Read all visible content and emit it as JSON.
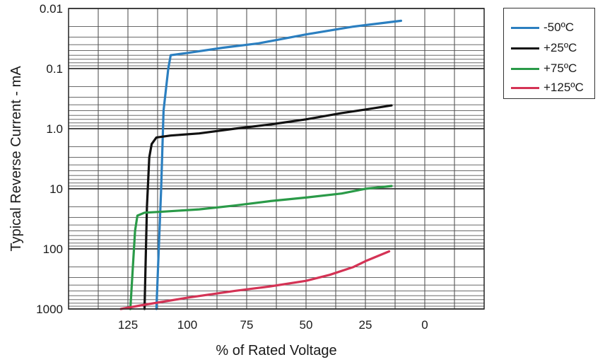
{
  "chart_data": {
    "type": "line",
    "xlabel": "% of Rated Voltage",
    "ylabel": "Typical Reverse Current - mA",
    "x_ticks": [
      "125",
      "100",
      "75",
      "50",
      "25",
      "0"
    ],
    "x_tick_values": [
      125,
      100,
      75,
      50,
      25,
      0
    ],
    "xlim": [
      150,
      -25
    ],
    "y_ticks": [
      "0.01",
      "0.1",
      "1.0",
      "10",
      "100",
      "1000"
    ],
    "y_tick_values": [
      0.01,
      0.1,
      1,
      10,
      100,
      1000
    ],
    "ylim": [
      0.01,
      1000
    ],
    "y_scale": "log",
    "y_inverted": true,
    "grid": true,
    "legend_position": "top-right outside",
    "series": [
      {
        "name": "-50ºC",
        "color": "#2b7fc0",
        "points": [
          [
            113,
            1000
          ],
          [
            111,
            10
          ],
          [
            110,
            0.5
          ],
          [
            108,
            0.1
          ],
          [
            107,
            0.06
          ],
          [
            100,
            0.055
          ],
          [
            85,
            0.045
          ],
          [
            70,
            0.038
          ],
          [
            50,
            0.027
          ],
          [
            30,
            0.02
          ],
          [
            10,
            0.016
          ]
        ]
      },
      {
        "name": "+25ºC",
        "color": "#111111",
        "points": [
          [
            118,
            1000
          ],
          [
            117,
            20
          ],
          [
            116,
            3
          ],
          [
            115,
            1.8
          ],
          [
            113,
            1.4
          ],
          [
            107,
            1.3
          ],
          [
            95,
            1.2
          ],
          [
            80,
            1.0
          ],
          [
            65,
            0.85
          ],
          [
            50,
            0.7
          ],
          [
            35,
            0.55
          ],
          [
            25,
            0.48
          ],
          [
            14,
            0.41
          ]
        ]
      },
      {
        "name": "+75ºC",
        "color": "#2a9a48",
        "points": [
          [
            124,
            1000
          ],
          [
            122,
            50
          ],
          [
            121,
            28
          ],
          [
            118,
            25
          ],
          [
            110,
            24
          ],
          [
            95,
            22
          ],
          [
            80,
            19
          ],
          [
            65,
            16
          ],
          [
            50,
            14
          ],
          [
            35,
            12
          ],
          [
            25,
            10
          ],
          [
            14,
            9
          ]
        ]
      },
      {
        "name": "+125ºC",
        "color": "#d43355",
        "points": [
          [
            128,
            1000
          ],
          [
            118,
            850
          ],
          [
            100,
            650
          ],
          [
            80,
            500
          ],
          [
            65,
            420
          ],
          [
            50,
            340
          ],
          [
            40,
            270
          ],
          [
            30,
            200
          ],
          [
            25,
            160
          ],
          [
            15,
            110
          ]
        ]
      }
    ]
  }
}
